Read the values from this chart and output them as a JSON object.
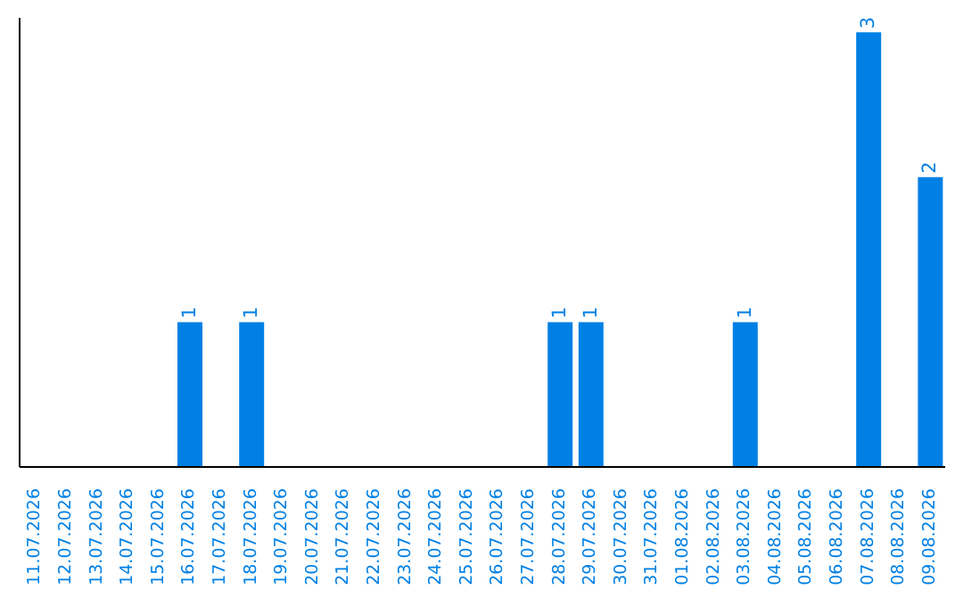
{
  "chart_data": {
    "type": "bar",
    "categories": [
      "11.07.2026",
      "12.07.2026",
      "13.07.2026",
      "14.07.2026",
      "15.07.2026",
      "16.07.2026",
      "17.07.2026",
      "18.07.2026",
      "19.07.2026",
      "20.07.2026",
      "21.07.2026",
      "22.07.2026",
      "23.07.2026",
      "24.07.2026",
      "25.07.2026",
      "26.07.2026",
      "27.07.2026",
      "28.07.2026",
      "29.07.2026",
      "30.07.2026",
      "31.07.2026",
      "01.08.2026",
      "02.08.2026",
      "03.08.2026",
      "04.08.2026",
      "05.08.2026",
      "06.08.2026",
      "07.08.2026",
      "08.08.2026",
      "09.08.2026"
    ],
    "values": [
      0,
      0,
      0,
      0,
      0,
      1,
      0,
      1,
      0,
      0,
      0,
      0,
      0,
      0,
      0,
      0,
      0,
      1,
      1,
      0,
      0,
      0,
      0,
      1,
      0,
      0,
      0,
      3,
      0,
      2
    ],
    "value_labels": [
      null,
      null,
      null,
      null,
      null,
      "1",
      null,
      "1",
      null,
      null,
      null,
      null,
      null,
      null,
      null,
      null,
      null,
      "1",
      "1",
      null,
      null,
      null,
      null,
      "1",
      null,
      null,
      null,
      "3",
      null,
      "2"
    ],
    "color": "#0080e4",
    "ylim": [
      0,
      3.1
    ],
    "grid": false,
    "legend": false
  }
}
